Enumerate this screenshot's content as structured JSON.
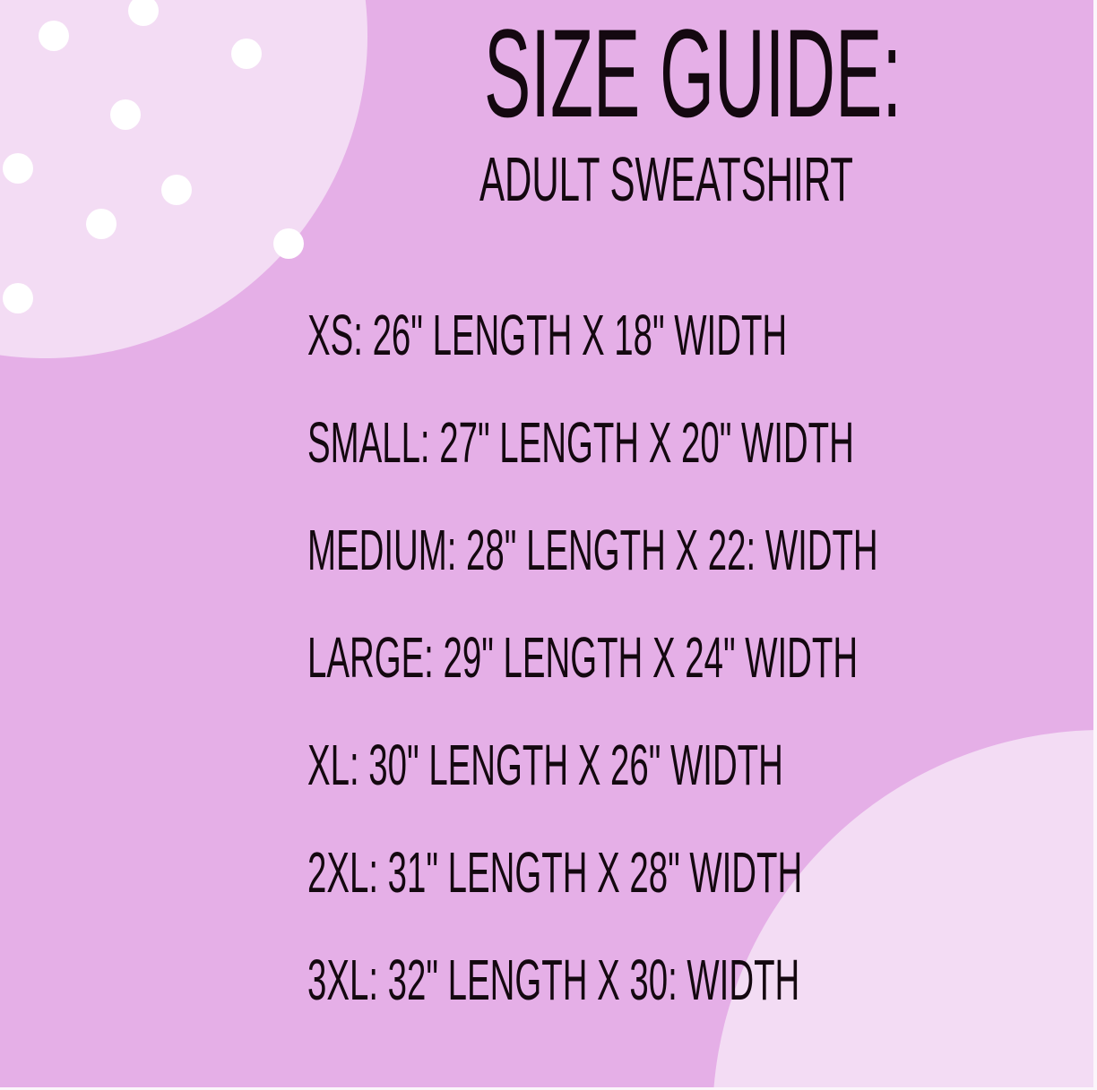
{
  "title": "SIZE GUIDE:",
  "subtitle": "ADULT SWEATSHIRT",
  "sizes": [
    "XS: 26\" LENGTH X 18\" WIDTH",
    "SMALL: 27\" LENGTH X 20\" WIDTH",
    "MEDIUM: 28\" LENGTH X 22: WIDTH",
    "LARGE: 29\" LENGTH X 24\" WIDTH",
    "XL: 30\" LENGTH X 26\" WIDTH",
    "2XL: 31\" LENGTH X 28\" WIDTH",
    "3XL: 32\" LENGTH X 30: WIDTH"
  ],
  "colors": {
    "background": "#e5afe7",
    "blob": "#f3dcf4",
    "dots": "#ffffff",
    "text": "#140810"
  }
}
